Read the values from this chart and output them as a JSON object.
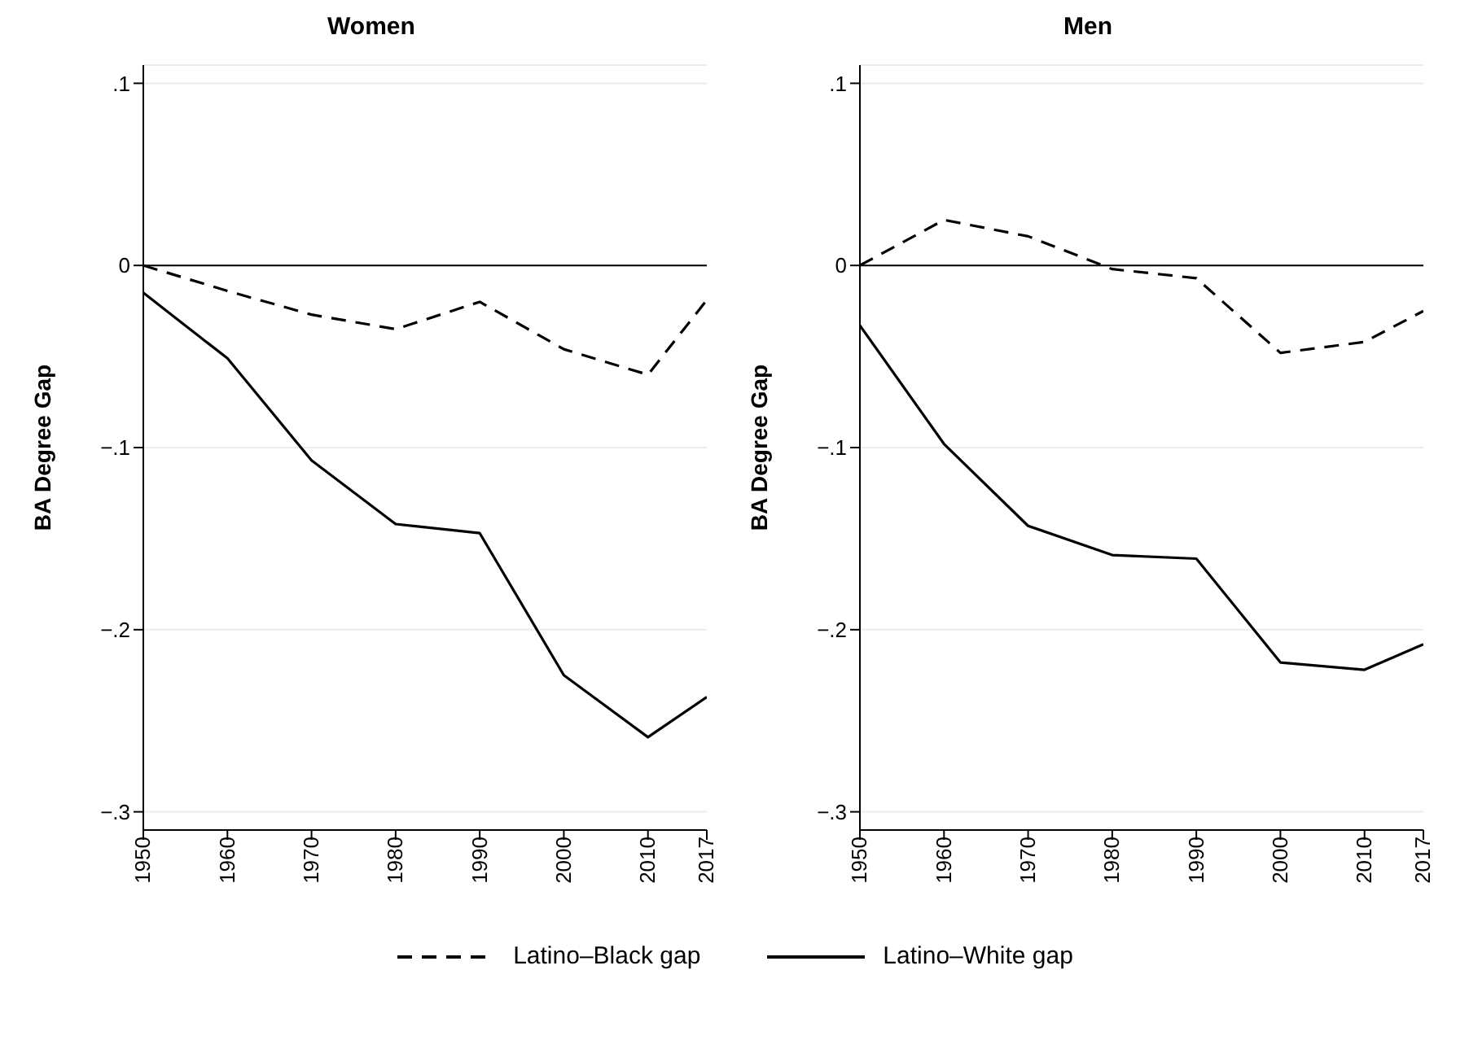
{
  "chart_data": [
    {
      "type": "line",
      "title": "Women",
      "ylabel": "BA Degree Gap",
      "x": [
        1950,
        1960,
        1970,
        1980,
        1990,
        2000,
        2010,
        2017
      ],
      "xlim": [
        1950,
        2017
      ],
      "xticks": [
        1950,
        1960,
        1970,
        1980,
        1990,
        2000,
        2010,
        2017
      ],
      "ylim": [
        -0.31,
        0.11
      ],
      "yticks": [
        {
          "value": -0.3,
          "label": "−.3"
        },
        {
          "value": -0.2,
          "label": "−.2"
        },
        {
          "value": -0.1,
          "label": "−.1"
        },
        0,
        {
          "value": 0.1,
          "label": ".1"
        }
      ],
      "grid": "y",
      "legend": "bottom",
      "marker": "none",
      "ref_lines": [
        {
          "axis": "y",
          "value": 0,
          "color": "#000000"
        }
      ],
      "series": [
        {
          "name": "Latino–Black gap",
          "color": "#000000",
          "line_style": "dashed",
          "values": [
            0.0,
            -0.014,
            -0.027,
            -0.035,
            -0.02,
            -0.046,
            -0.06,
            -0.019
          ]
        },
        {
          "name": "Latino–White gap",
          "color": "#000000",
          "line_style": "solid",
          "values": [
            -0.015,
            -0.051,
            -0.107,
            -0.142,
            -0.147,
            -0.225,
            -0.259,
            -0.237
          ]
        }
      ]
    },
    {
      "type": "line",
      "title": "Men",
      "ylabel": "BA Degree Gap",
      "x": [
        1950,
        1960,
        1970,
        1980,
        1990,
        2000,
        2010,
        2017
      ],
      "xlim": [
        1950,
        2017
      ],
      "xticks": [
        1950,
        1960,
        1970,
        1980,
        1990,
        2000,
        2010,
        2017
      ],
      "ylim": [
        -0.31,
        0.11
      ],
      "yticks": [
        {
          "value": -0.3,
          "label": "−.3"
        },
        {
          "value": -0.2,
          "label": "−.2"
        },
        {
          "value": -0.1,
          "label": "−.1"
        },
        0,
        {
          "value": 0.1,
          "label": ".1"
        }
      ],
      "grid": "y",
      "marker": "none",
      "ref_lines": [
        {
          "axis": "y",
          "value": 0,
          "color": "#000000"
        }
      ],
      "series": [
        {
          "color": "#000000",
          "line_style": "dashed",
          "values": [
            0.0,
            0.025,
            0.016,
            -0.002,
            -0.007,
            -0.048,
            -0.042,
            -0.025
          ]
        },
        {
          "color": "#000000",
          "line_style": "solid",
          "values": [
            -0.033,
            -0.098,
            -0.143,
            -0.159,
            -0.161,
            -0.218,
            -0.222,
            -0.208
          ]
        }
      ]
    }
  ]
}
